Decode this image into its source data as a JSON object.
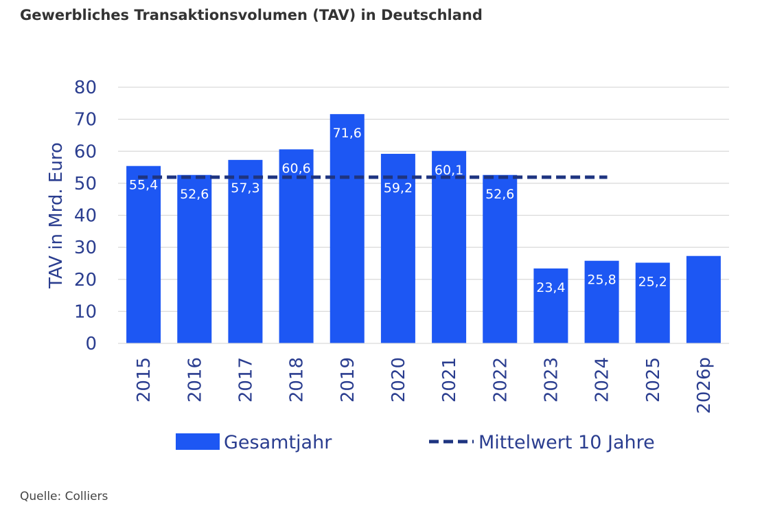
{
  "page": {
    "title": "Gewerbliches Transaktionsvolumen (TAV) in Deutschland",
    "source": "Quelle: Colliers"
  },
  "colors": {
    "bar": "#1d57f3",
    "mean_line": "#1e3480",
    "axis_text": "#2a3d8f",
    "grid": "#d9d9d9"
  },
  "chart_data": {
    "type": "bar",
    "title": "Gewerbliches Transaktionsvolumen (TAV) in Deutschland",
    "ylabel": "TAV in Mrd. Euro",
    "xlabel": "",
    "ylim": [
      0,
      80
    ],
    "yticks": [
      0,
      10,
      20,
      30,
      40,
      50,
      60,
      70,
      80
    ],
    "grid": true,
    "categories": [
      "2015",
      "2016",
      "2017",
      "2018",
      "2019",
      "2020",
      "2021",
      "2022",
      "2023",
      "2024",
      "2025",
      "2026p"
    ],
    "series": [
      {
        "name": "Gesamtjahr",
        "type": "bar",
        "values": [
          55.4,
          52.6,
          57.3,
          60.6,
          71.6,
          59.2,
          60.1,
          52.6,
          23.4,
          25.8,
          25.2,
          27.3
        ],
        "labels": [
          "55,4",
          "52,6",
          "57,3",
          "60,6",
          "71,6",
          "59,2",
          "60,1",
          "52,6",
          "23,4",
          "25,8",
          "25,2",
          ""
        ]
      },
      {
        "name": "Mittelwert 10 Jahre",
        "type": "line",
        "style": "dashed",
        "value": 51.9,
        "range": [
          "2015",
          "2024"
        ]
      }
    ],
    "legend": [
      "Gesamtjahr",
      "Mittelwert 10 Jahre"
    ],
    "legend_position": "bottom"
  }
}
